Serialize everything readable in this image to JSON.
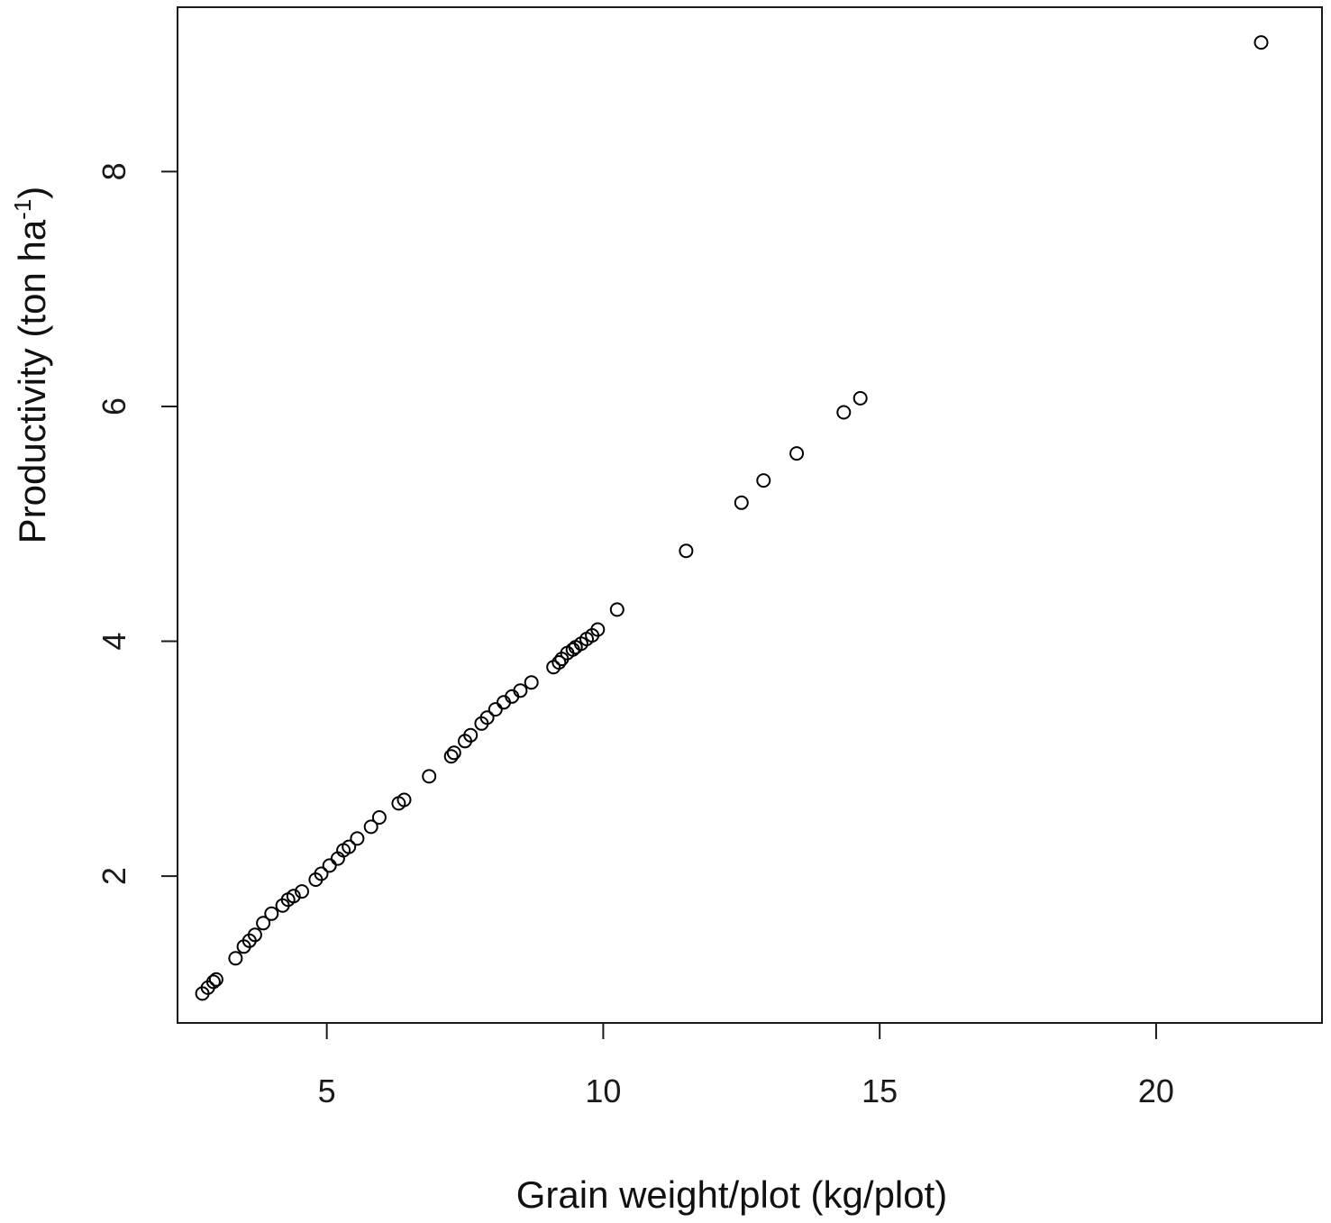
{
  "chart_data": {
    "type": "scatter",
    "title": "",
    "xlabel": "Grain weight/plot (kg/plot)",
    "ylabel_main": "Productivity (ton ha",
    "ylabel_sup": "-1",
    "ylabel_close": ")",
    "xlim": [
      2.3,
      23.0
    ],
    "ylim": [
      0.75,
      9.4
    ],
    "xticks": [
      5,
      10,
      15,
      20
    ],
    "yticks": [
      2,
      4,
      6,
      8
    ],
    "xtick_labels": [
      "5",
      "10",
      "15",
      "20"
    ],
    "ytick_labels": [
      "2",
      "4",
      "6",
      "8"
    ],
    "grid": false,
    "marker": "open-circle",
    "marker_color": "#000000",
    "x": [
      2.75,
      2.85,
      2.95,
      3.0,
      3.35,
      3.5,
      3.6,
      3.7,
      3.85,
      4.0,
      4.2,
      4.3,
      4.4,
      4.55,
      4.8,
      4.9,
      5.05,
      5.2,
      5.3,
      5.4,
      5.55,
      5.8,
      5.95,
      6.3,
      6.4,
      6.85,
      7.25,
      7.3,
      7.5,
      7.6,
      7.8,
      7.9,
      8.05,
      8.2,
      8.35,
      8.5,
      8.7,
      9.1,
      9.2,
      9.25,
      9.35,
      9.45,
      9.5,
      9.6,
      9.7,
      9.8,
      9.9,
      10.25,
      11.5,
      12.5,
      12.9,
      13.5,
      14.35,
      14.65,
      21.9
    ],
    "y": [
      1.0,
      1.05,
      1.1,
      1.12,
      1.3,
      1.4,
      1.45,
      1.5,
      1.6,
      1.68,
      1.75,
      1.8,
      1.83,
      1.87,
      1.97,
      2.02,
      2.09,
      2.15,
      2.22,
      2.25,
      2.32,
      2.42,
      2.5,
      2.62,
      2.65,
      2.85,
      3.02,
      3.05,
      3.15,
      3.2,
      3.3,
      3.35,
      3.42,
      3.48,
      3.53,
      3.58,
      3.65,
      3.78,
      3.82,
      3.85,
      3.9,
      3.93,
      3.95,
      3.98,
      4.02,
      4.05,
      4.1,
      4.27,
      4.77,
      5.18,
      5.37,
      5.6,
      5.95,
      6.07,
      9.1
    ]
  }
}
